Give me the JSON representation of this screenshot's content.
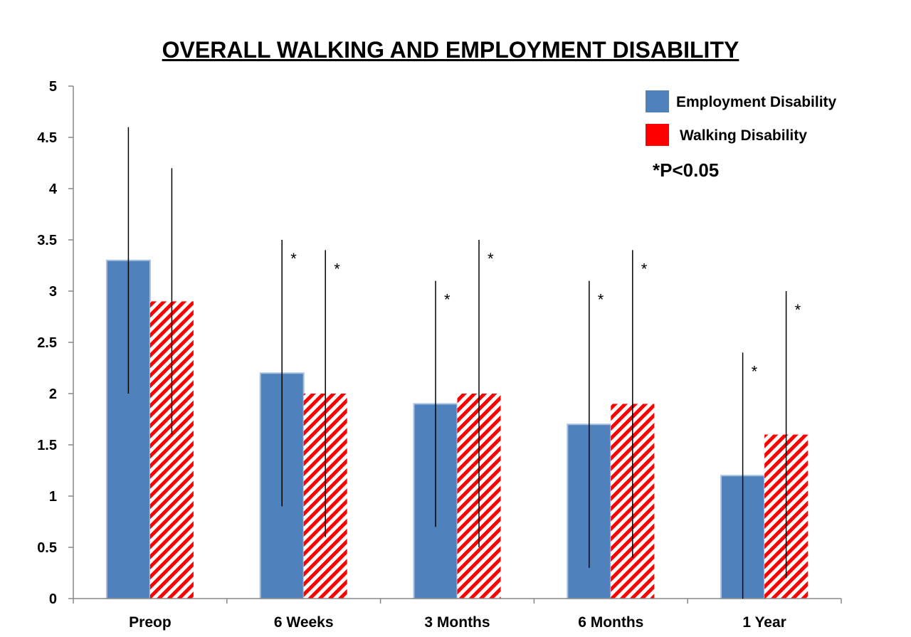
{
  "chart_data": {
    "type": "bar",
    "title": "OVERALL WALKING AND EMPLOYMENT DISABILITY",
    "categories": [
      "Preop",
      "6 Weeks",
      "3 Months",
      "6 Months",
      "1 Year"
    ],
    "ylim": [
      0,
      5
    ],
    "yticks": [
      "0",
      "0.5",
      "1",
      "1.5",
      "2",
      "2.5",
      "3",
      "3.5",
      "4",
      "4.5",
      "5"
    ],
    "grid": false,
    "legend_position": "top-right",
    "significance_note": "*P<0.05",
    "significance_marker": "*",
    "series": [
      {
        "name": "Employment Disability",
        "color": "#4f81bd",
        "pattern": "solid",
        "values": [
          3.3,
          2.2,
          1.9,
          1.7,
          1.2
        ],
        "error_low": [
          2.0,
          0.9,
          0.7,
          0.3,
          0.0
        ],
        "error_high": [
          4.6,
          3.5,
          3.1,
          3.1,
          2.4
        ],
        "significant": [
          false,
          true,
          true,
          true,
          true
        ]
      },
      {
        "name": "Walking Disability",
        "color": "#ff0000",
        "pattern": "diagonal-stripes",
        "values": [
          2.9,
          2.0,
          2.0,
          1.9,
          1.6
        ],
        "error_low": [
          1.6,
          0.6,
          0.5,
          0.4,
          0.2
        ],
        "error_high": [
          4.2,
          3.4,
          3.5,
          3.4,
          3.0
        ],
        "significant": [
          false,
          true,
          true,
          true,
          true
        ]
      }
    ]
  }
}
